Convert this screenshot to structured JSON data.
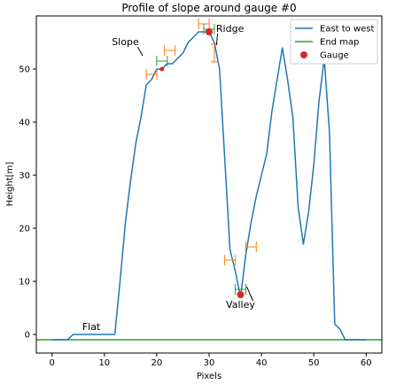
{
  "chart_data": {
    "type": "line",
    "title": "Profile of slope around gauge #0",
    "xlabel": "Pixels",
    "ylabel": "Height[m]",
    "xlim": [
      -3,
      63
    ],
    "ylim": [
      -3.5,
      60
    ],
    "xticks": [
      0,
      10,
      20,
      30,
      40,
      50,
      60
    ],
    "yticks": [
      0,
      10,
      20,
      30,
      40,
      50
    ],
    "grid": false,
    "legend_position": "top-right",
    "colors": {
      "profile": "#1f77b4",
      "end_map": "#2ca02c",
      "gauge": "#d62728",
      "markers": "#ff7f0e",
      "markers_green": "#2ca02c"
    },
    "series": [
      {
        "name": "East to west",
        "kind": "line",
        "x": [
          0,
          1,
          2,
          3,
          4,
          5,
          6,
          7,
          8,
          9,
          10,
          11,
          12,
          13,
          14,
          15,
          16,
          17,
          18,
          19,
          20,
          21,
          22,
          23,
          24,
          25,
          26,
          27,
          28,
          29,
          30,
          31,
          32,
          33,
          34,
          35,
          36,
          37,
          38,
          39,
          40,
          41,
          42,
          43,
          44,
          45,
          46,
          47,
          48,
          49,
          50,
          51,
          52,
          53,
          54,
          55,
          56,
          57,
          58,
          59,
          60
        ],
        "y": [
          -1,
          -1,
          -1,
          -1,
          0,
          0,
          0,
          0,
          0,
          0,
          0,
          0,
          0,
          10,
          21,
          29,
          36,
          41,
          47,
          48,
          50,
          50,
          51,
          51,
          52,
          53,
          55,
          56,
          57,
          57,
          57,
          55,
          50,
          33,
          16,
          12,
          7,
          15,
          21,
          26,
          30,
          34,
          42,
          48,
          54,
          48,
          41,
          24,
          17,
          23,
          32,
          44,
          52,
          38,
          2,
          1,
          -1,
          -1,
          -1,
          -1,
          -1
        ]
      },
      {
        "name": "End map",
        "kind": "hline",
        "y": -1
      },
      {
        "name": "Gauge",
        "kind": "scatter",
        "points": [
          {
            "x": 30,
            "y": 57,
            "size": "large"
          },
          {
            "x": 36,
            "y": 7.5,
            "size": "large"
          },
          {
            "x": 21,
            "y": 50,
            "size": "small"
          }
        ]
      }
    ],
    "slope_markers": [
      {
        "x": 19,
        "y": 49,
        "color": "orange",
        "orient": "horizontal"
      },
      {
        "x": 21,
        "y": 51.5,
        "color": "green",
        "orient": "horizontal"
      },
      {
        "x": 22.5,
        "y": 53.5,
        "color": "orange",
        "orient": "horizontal"
      },
      {
        "x": 29,
        "y": 58.5,
        "color": "orange",
        "orient": "horizontal"
      },
      {
        "x": 30,
        "y": 57.5,
        "color": "green",
        "orient": "horizontal"
      },
      {
        "x": 31,
        "y": 53,
        "color": "orange",
        "orient": "vertical"
      },
      {
        "x": 34,
        "y": 14,
        "color": "orange",
        "orient": "horizontal"
      },
      {
        "x": 36,
        "y": 8.5,
        "color": "green",
        "orient": "horizontal"
      },
      {
        "x": 38,
        "y": 16.5,
        "color": "orange",
        "orient": "horizontal"
      }
    ],
    "annotations": [
      {
        "text": "Slope",
        "x": 14,
        "y": 54.5,
        "arrow_to": [
          17.3,
          52.5
        ]
      },
      {
        "text": "Ridge",
        "x": 34,
        "y": 57,
        "arrow_to": [
          31.4,
          54.5
        ]
      },
      {
        "text": "Valley",
        "x": 36,
        "y": 5,
        "arrow_to": [
          37.2,
          9
        ]
      },
      {
        "text": "Flat",
        "x": 7.5,
        "y": 0.8
      }
    ]
  }
}
